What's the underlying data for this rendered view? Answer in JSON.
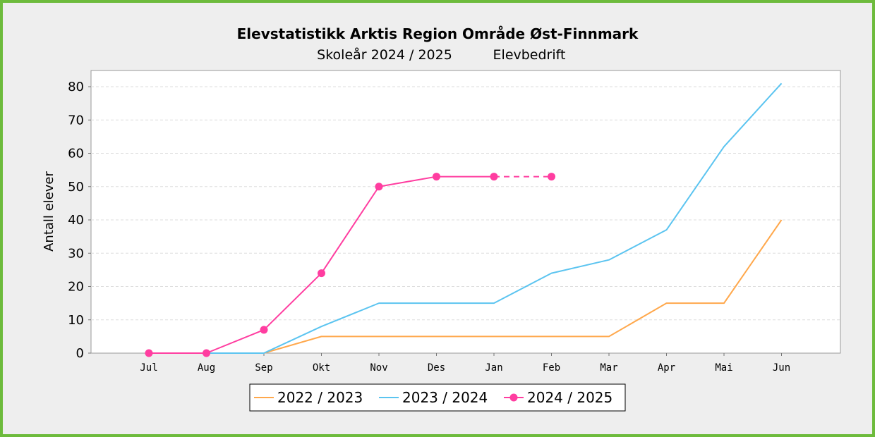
{
  "chart_data": {
    "type": "line",
    "title": "Elevstatistikk Arktis Region Område Øst-Finnmark",
    "subtitle_left": "Skoleår 2024 / 2025",
    "subtitle_right": "Elevbedrift",
    "ylabel": "Antall elever",
    "xlabel": "",
    "ylim": [
      0,
      85
    ],
    "yticks": [
      0,
      10,
      20,
      30,
      40,
      50,
      60,
      70,
      80
    ],
    "categories": [
      "Jul",
      "Aug",
      "Sep",
      "Okt",
      "Nov",
      "Des",
      "Jan",
      "Feb",
      "Mar",
      "Apr",
      "Mai",
      "Jun"
    ],
    "grid": true,
    "legend_position": "bottom",
    "series": [
      {
        "name": "2022 / 2023",
        "color": "#ffa84c",
        "markers": false,
        "values": [
          0,
          0,
          0,
          5,
          5,
          5,
          5,
          5,
          5,
          15,
          15,
          40
        ]
      },
      {
        "name": "2023 / 2024",
        "color": "#5bc4f0",
        "markers": false,
        "values": [
          0,
          0,
          0,
          8,
          15,
          15,
          15,
          24,
          28,
          37,
          62,
          81
        ]
      },
      {
        "name": "2024 / 2025",
        "color": "#ff3da0",
        "markers": true,
        "values": [
          0,
          0,
          7,
          24,
          50,
          53,
          53,
          53,
          null,
          null,
          null,
          null
        ],
        "dashed_from_index": 6
      }
    ]
  }
}
